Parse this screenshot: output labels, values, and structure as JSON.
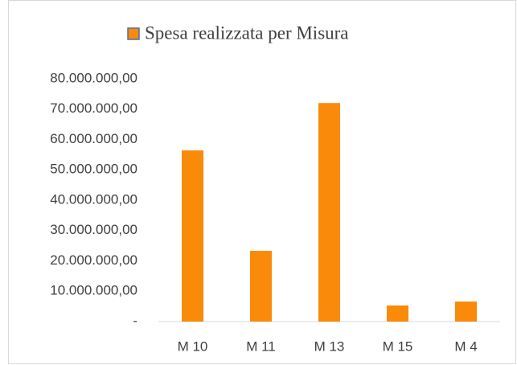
{
  "chart_data": {
    "type": "bar",
    "categories": [
      "M 10",
      "M 11",
      "M 13",
      "M 15",
      "M 4"
    ],
    "series": [
      {
        "name": "Spesa realizzata per Misura",
        "color": "#f98a0a",
        "values": [
          56400000,
          23300000,
          72000000,
          5300000,
          6600000
        ]
      }
    ],
    "ylim": [
      0,
      80000000
    ],
    "yticks": [
      {
        "value": 0,
        "label": "-"
      },
      {
        "value": 10000000,
        "label": "10.000.000,00"
      },
      {
        "value": 20000000,
        "label": "20.000.000,00"
      },
      {
        "value": 30000000,
        "label": "30.000.000,00"
      },
      {
        "value": 40000000,
        "label": "40.000.000,00"
      },
      {
        "value": 50000000,
        "label": "50.000.000,00"
      },
      {
        "value": 60000000,
        "label": "60.000.000,00"
      },
      {
        "value": 70000000,
        "label": "70.000.000,00"
      },
      {
        "value": 80000000,
        "label": "80.000.000,00"
      }
    ],
    "legend": "top",
    "grid": false
  }
}
